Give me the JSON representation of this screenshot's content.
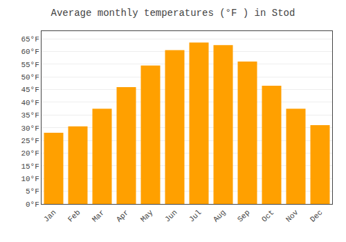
{
  "chart_data": {
    "type": "bar",
    "title": "Average monthly temperatures (°F ) in Stod",
    "categories": [
      "Jan",
      "Feb",
      "Mar",
      "Apr",
      "May",
      "Jun",
      "Jul",
      "Aug",
      "Sep",
      "Oct",
      "Nov",
      "Dec"
    ],
    "values": [
      28,
      30.5,
      37.5,
      46,
      54.5,
      60.5,
      63.5,
      62.5,
      56,
      46.5,
      37.5,
      31
    ],
    "color": "#FFA000",
    "ylim": [
      0,
      68
    ],
    "yticks": [
      {
        "value": 0,
        "label": "0°F"
      },
      {
        "value": 5,
        "label": "5°F"
      },
      {
        "value": 10,
        "label": "10°F"
      },
      {
        "value": 15,
        "label": "15°F"
      },
      {
        "value": 20,
        "label": "20°F"
      },
      {
        "value": 25,
        "label": "25°F"
      },
      {
        "value": 30,
        "label": "30°F"
      },
      {
        "value": 35,
        "label": "35°F"
      },
      {
        "value": 40,
        "label": "40°F"
      },
      {
        "value": 45,
        "label": "45°F"
      },
      {
        "value": 50,
        "label": "50°F"
      },
      {
        "value": 55,
        "label": "55°F"
      },
      {
        "value": 60,
        "label": "60°F"
      },
      {
        "value": 65,
        "label": "65°F"
      }
    ],
    "grid": true
  }
}
